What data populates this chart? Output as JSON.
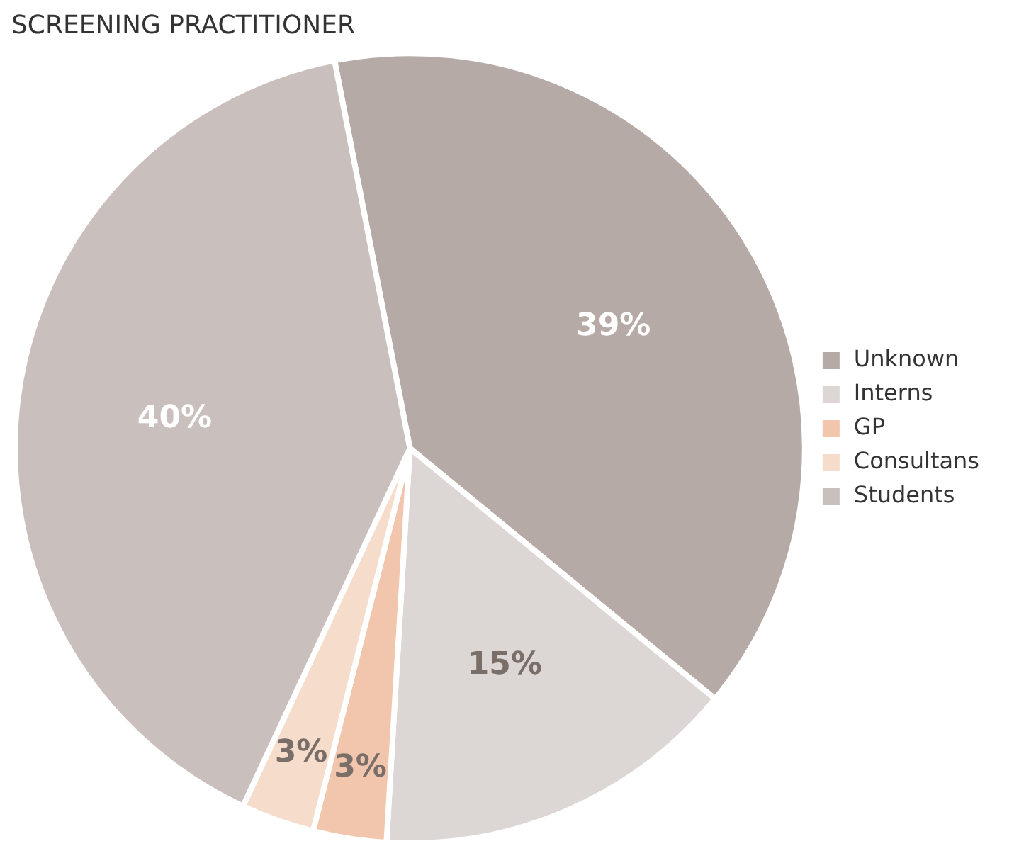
{
  "chart_data": {
    "type": "pie",
    "title": "SCREENING PRACTITIONER",
    "categories": [
      "Unknown",
      "Interns",
      "GP",
      "Consultans",
      "Students"
    ],
    "values": [
      39,
      15,
      3,
      3,
      40
    ],
    "value_labels": [
      "39%",
      "15%",
      "3%",
      "3%",
      "40%"
    ],
    "colors": [
      "#b5aaa5",
      "#dcd6d4",
      "#f2c6ad",
      "#f5dccb",
      "#c9bfbc"
    ],
    "legend": "right"
  }
}
